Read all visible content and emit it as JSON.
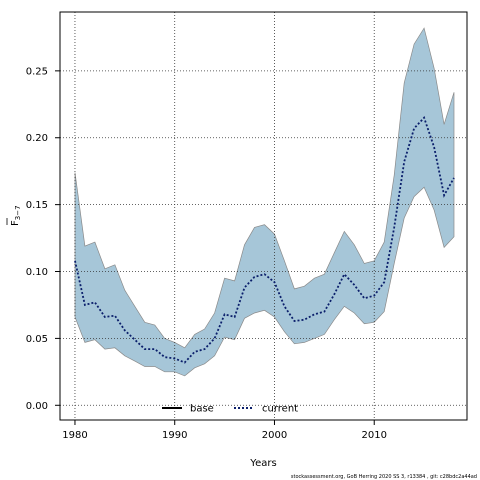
{
  "chart_data": {
    "type": "area",
    "xlabel": "Years",
    "ylabel_main": "F",
    "ylabel_sub": "3−7",
    "xlim": [
      1978.5,
      2019.3
    ],
    "ylim": [
      -0.011,
      0.294
    ],
    "xticks": [
      1980,
      1990,
      2000,
      2010
    ],
    "yticks": [
      0.0,
      0.05,
      0.1,
      0.15,
      0.2,
      0.25
    ],
    "ytick_labels": [
      "0.00",
      "0.05",
      "0.10",
      "0.15",
      "0.20",
      "0.25"
    ],
    "grid": true,
    "legend_placement": "bottom-center",
    "footnote": "stockassessment.org, GoB Herring 2020 SS 3, r13384 , git: c28bdc2a44ad",
    "colors": {
      "band_fill": "#a6c6d8",
      "band_edge": "#8a8a8a",
      "current_line": "#0b1f6b",
      "base_line": "#000000",
      "grid": "#333333"
    },
    "series": [
      {
        "name": "base",
        "style": "solid",
        "color": "#000000",
        "values": []
      },
      {
        "name": "current",
        "style": "dotted",
        "color": "#0b1f6b",
        "x": [
          1980,
          1981,
          1982,
          1983,
          1984,
          1985,
          1986,
          1987,
          1988,
          1989,
          1990,
          1991,
          1992,
          1993,
          1994,
          1995,
          1996,
          1997,
          1998,
          1999,
          2000,
          2001,
          2002,
          2003,
          2004,
          2005,
          2006,
          2007,
          2008,
          2009,
          2010,
          2011,
          2012,
          2013,
          2014,
          2015,
          2016,
          2017,
          2018
        ],
        "values": [
          0.108,
          0.075,
          0.077,
          0.066,
          0.067,
          0.056,
          0.049,
          0.042,
          0.042,
          0.036,
          0.035,
          0.032,
          0.04,
          0.042,
          0.05,
          0.068,
          0.066,
          0.088,
          0.096,
          0.098,
          0.092,
          0.074,
          0.063,
          0.064,
          0.068,
          0.07,
          0.083,
          0.098,
          0.09,
          0.08,
          0.082,
          0.092,
          0.133,
          0.182,
          0.207,
          0.215,
          0.193,
          0.157,
          0.17
        ]
      }
    ],
    "band": {
      "name": "current confidence interval",
      "x": [
        1980,
        1981,
        1982,
        1983,
        1984,
        1985,
        1986,
        1987,
        1988,
        1989,
        1990,
        1991,
        1992,
        1993,
        1994,
        1995,
        1996,
        1997,
        1998,
        1999,
        2000,
        2001,
        2002,
        2003,
        2004,
        2005,
        2006,
        2007,
        2008,
        2009,
        2010,
        2011,
        2012,
        2013,
        2014,
        2015,
        2016,
        2017,
        2018
      ],
      "lower": [
        0.066,
        0.047,
        0.049,
        0.042,
        0.043,
        0.037,
        0.033,
        0.029,
        0.029,
        0.025,
        0.025,
        0.022,
        0.028,
        0.031,
        0.037,
        0.051,
        0.049,
        0.065,
        0.069,
        0.071,
        0.066,
        0.055,
        0.046,
        0.047,
        0.05,
        0.053,
        0.064,
        0.074,
        0.069,
        0.061,
        0.062,
        0.07,
        0.106,
        0.14,
        0.156,
        0.163,
        0.146,
        0.118,
        0.126
      ],
      "upper": [
        0.174,
        0.119,
        0.122,
        0.102,
        0.105,
        0.086,
        0.074,
        0.062,
        0.06,
        0.05,
        0.047,
        0.043,
        0.053,
        0.057,
        0.069,
        0.095,
        0.093,
        0.12,
        0.133,
        0.135,
        0.128,
        0.108,
        0.087,
        0.089,
        0.095,
        0.098,
        0.114,
        0.13,
        0.12,
        0.106,
        0.108,
        0.122,
        0.172,
        0.241,
        0.27,
        0.282,
        0.252,
        0.21,
        0.234
      ]
    }
  }
}
